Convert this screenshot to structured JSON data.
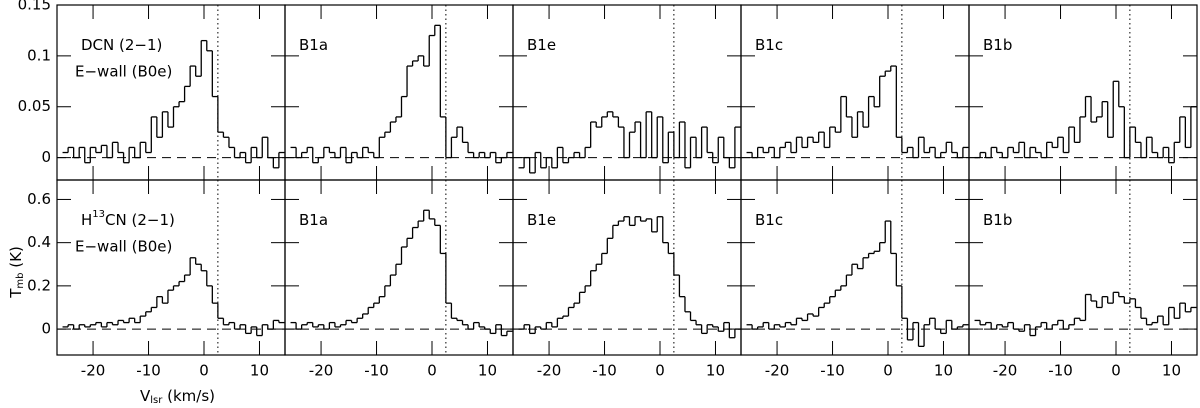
{
  "x_label": [
    {
      "text": "V"
    },
    {
      "text": "lsr",
      "sub": true
    },
    {
      "text": " (km/s)"
    }
  ],
  "y_label": [
    {
      "text": "T"
    },
    {
      "text": "mb",
      "sub": true
    },
    {
      "text": " (K)"
    }
  ],
  "chart_data": [
    {
      "type": "line",
      "title": [
        {
          "text": "DCN (2−1)"
        }
      ],
      "subtitle": "E−wall (B0e)",
      "x": [
        -25,
        -24,
        -23,
        -22,
        -21,
        -20,
        -19,
        -18,
        -17,
        -16,
        -15,
        -14,
        -13,
        -12,
        -11,
        -10,
        -9,
        -8,
        -7,
        -6,
        -5,
        -4,
        -3,
        -2,
        -1,
        0,
        1,
        2,
        3,
        4,
        5,
        6,
        7,
        8,
        9,
        10,
        11,
        12,
        13,
        14
      ],
      "values": [
        0.005,
        0.01,
        0.0,
        0.01,
        -0.005,
        0.01,
        0.005,
        0.012,
        0.0,
        0.015,
        0.005,
        -0.005,
        0.01,
        0.0,
        0.015,
        0.005,
        0.04,
        0.02,
        0.045,
        0.03,
        0.05,
        0.055,
        0.07,
        0.09,
        0.08,
        0.115,
        0.105,
        0.06,
        0.025,
        0.02,
        0.01,
        0.0,
        0.005,
        -0.005,
        0.01,
        0.0,
        0.02,
        0.0,
        -0.01,
        0.005
      ],
      "xlim": [
        -26.5,
        14.6
      ],
      "ylim": [
        -0.022,
        0.15
      ],
      "xticks": [
        -20,
        -10,
        0,
        10
      ],
      "yticks": [
        0,
        0.05,
        0.1,
        0.15
      ],
      "vline": 2.5
    },
    {
      "type": "line",
      "title": [
        {
          "text": "B1a"
        }
      ],
      "x": [
        -25,
        -24,
        -23,
        -22,
        -21,
        -20,
        -19,
        -18,
        -17,
        -16,
        -15,
        -14,
        -13,
        -12,
        -11,
        -10,
        -9,
        -8,
        -7,
        -6,
        -5,
        -4,
        -3,
        -2,
        -1,
        0,
        1,
        2,
        3,
        4,
        5,
        6,
        7,
        8,
        9,
        10,
        11,
        12,
        13,
        14
      ],
      "values": [
        0.01,
        0.0,
        0.005,
        0.01,
        -0.005,
        0.0,
        0.01,
        0.005,
        0.0,
        0.01,
        -0.005,
        0.005,
        0.0,
        0.01,
        0.005,
        0.0,
        0.02,
        0.025,
        0.035,
        0.04,
        0.06,
        0.09,
        0.095,
        0.1,
        0.09,
        0.12,
        0.13,
        0.04,
        0.0,
        0.02,
        0.03,
        0.015,
        0.005,
        0.0,
        0.005,
        0.0,
        0.005,
        -0.005,
        0.0,
        0.005
      ],
      "xlim": [
        -26.5,
        14.6
      ],
      "ylim": [
        -0.022,
        0.15
      ],
      "xticks": [
        -20,
        -10,
        0,
        10
      ],
      "yticks": [
        0,
        0.05,
        0.1,
        0.15
      ],
      "vline": 2.5
    },
    {
      "type": "line",
      "title": [
        {
          "text": "B1e"
        }
      ],
      "x": [
        -25,
        -24,
        -23,
        -22,
        -21,
        -20,
        -19,
        -18,
        -17,
        -16,
        -15,
        -14,
        -13,
        -12,
        -11,
        -10,
        -9,
        -8,
        -7,
        -6,
        -5,
        -4,
        -3,
        -2,
        -1,
        0,
        1,
        2,
        3,
        4,
        5,
        6,
        7,
        8,
        9,
        10,
        11,
        12,
        13,
        14
      ],
      "values": [
        -0.01,
        0.0,
        -0.015,
        0.005,
        -0.01,
        0.0,
        -0.01,
        0.01,
        -0.005,
        0.0,
        0.005,
        0.0,
        0.01,
        0.035,
        0.03,
        0.04,
        0.045,
        0.04,
        0.03,
        0.0,
        0.025,
        0.035,
        0.0,
        0.045,
        0.0,
        0.04,
        -0.005,
        0.025,
        0.0,
        0.035,
        -0.01,
        0.02,
        0.0,
        0.03,
        0.005,
        -0.005,
        0.02,
        0.0,
        -0.01,
        0.03
      ],
      "xlim": [
        -26.5,
        14.6
      ],
      "ylim": [
        -0.022,
        0.15
      ],
      "xticks": [
        -20,
        -10,
        0,
        10
      ],
      "yticks": [
        0,
        0.05,
        0.1,
        0.15
      ],
      "vline": 2.5
    },
    {
      "type": "line",
      "title": [
        {
          "text": "B1c"
        }
      ],
      "x": [
        -25,
        -24,
        -23,
        -22,
        -21,
        -20,
        -19,
        -18,
        -17,
        -16,
        -15,
        -14,
        -13,
        -12,
        -11,
        -10,
        -9,
        -8,
        -7,
        -6,
        -5,
        -4,
        -3,
        -2,
        -1,
        0,
        1,
        2,
        3,
        4,
        5,
        6,
        7,
        8,
        9,
        10,
        11,
        12,
        13,
        14
      ],
      "values": [
        0.005,
        0.0,
        0.01,
        0.005,
        0.01,
        0.0,
        0.01,
        0.015,
        0.005,
        0.02,
        0.01,
        0.02,
        0.015,
        0.025,
        0.01,
        0.03,
        0.025,
        0.06,
        0.04,
        0.02,
        0.045,
        0.03,
        0.06,
        0.05,
        0.08,
        0.085,
        0.09,
        0.02,
        0.005,
        0.01,
        0.0,
        0.02,
        0.005,
        0.01,
        0.0,
        0.005,
        0.015,
        0.005,
        0.0,
        0.01
      ],
      "xlim": [
        -26.5,
        14.6
      ],
      "ylim": [
        -0.022,
        0.15
      ],
      "xticks": [
        -20,
        -10,
        0,
        10
      ],
      "yticks": [
        0,
        0.05,
        0.1,
        0.15
      ],
      "vline": 2.5
    },
    {
      "type": "line",
      "title": [
        {
          "text": "B1b"
        }
      ],
      "x": [
        -25,
        -24,
        -23,
        -22,
        -21,
        -20,
        -19,
        -18,
        -17,
        -16,
        -15,
        -14,
        -13,
        -12,
        -11,
        -10,
        -9,
        -8,
        -7,
        -6,
        -5,
        -4,
        -3,
        -2,
        -1,
        0,
        1,
        2,
        3,
        4,
        5,
        6,
        7,
        8,
        9,
        10,
        11,
        12,
        13,
        14
      ],
      "values": [
        0.0,
        0.005,
        0.0,
        0.01,
        0.005,
        0.0,
        0.01,
        0.005,
        0.015,
        0.0,
        0.01,
        0.005,
        0.0,
        0.015,
        0.01,
        0.02,
        0.005,
        0.03,
        0.015,
        0.04,
        0.06,
        0.035,
        0.04,
        0.055,
        0.02,
        0.075,
        0.05,
        0.0,
        0.03,
        0.015,
        0.0,
        0.02,
        0.005,
        0.0,
        0.01,
        -0.005,
        0.015,
        0.04,
        0.01,
        0.05
      ],
      "xlim": [
        -26.5,
        14.6
      ],
      "ylim": [
        -0.022,
        0.15
      ],
      "xticks": [
        -20,
        -10,
        0,
        10
      ],
      "yticks": [
        0,
        0.05,
        0.1,
        0.15
      ],
      "vline": 2.5
    },
    {
      "type": "line",
      "title": [
        {
          "text": "H"
        },
        {
          "text": "13",
          "sup": true
        },
        {
          "text": "CN (2−1)"
        }
      ],
      "subtitle": "E−wall (B0e)",
      "x": [
        -25,
        -24,
        -23,
        -22,
        -21,
        -20,
        -19,
        -18,
        -17,
        -16,
        -15,
        -14,
        -13,
        -12,
        -11,
        -10,
        -9,
        -8,
        -7,
        -6,
        -5,
        -4,
        -3,
        -2,
        -1,
        0,
        1,
        2,
        3,
        4,
        5,
        6,
        7,
        8,
        9,
        10,
        11,
        12,
        13,
        14
      ],
      "values": [
        0.01,
        0.02,
        0.0,
        0.02,
        0.01,
        0.02,
        0.03,
        0.01,
        0.03,
        0.02,
        0.04,
        0.03,
        0.05,
        0.03,
        0.06,
        0.08,
        0.1,
        0.15,
        0.12,
        0.18,
        0.2,
        0.22,
        0.25,
        0.33,
        0.3,
        0.27,
        0.2,
        0.12,
        0.05,
        0.02,
        0.03,
        0.0,
        0.02,
        -0.02,
        0.01,
        -0.03,
        0.02,
        0.0,
        0.04,
        0.03
      ],
      "xlim": [
        -26.5,
        14.6
      ],
      "ylim": [
        -0.12,
        0.69
      ],
      "xticks": [
        -20,
        -10,
        0,
        10
      ],
      "yticks": [
        0,
        0.2,
        0.4,
        0.6
      ],
      "vline": 2.5
    },
    {
      "type": "line",
      "title": [
        {
          "text": "B1a"
        }
      ],
      "x": [
        -25,
        -24,
        -23,
        -22,
        -21,
        -20,
        -19,
        -18,
        -17,
        -16,
        -15,
        -14,
        -13,
        -12,
        -11,
        -10,
        -9,
        -8,
        -7,
        -6,
        -5,
        -4,
        -3,
        -2,
        -1,
        0,
        1,
        2,
        3,
        4,
        5,
        6,
        7,
        8,
        9,
        10,
        11,
        12,
        13,
        14
      ],
      "values": [
        0.03,
        0.0,
        0.02,
        0.03,
        0.01,
        0.02,
        0.0,
        0.03,
        0.01,
        0.02,
        0.04,
        0.03,
        0.05,
        0.07,
        0.1,
        0.12,
        0.15,
        0.2,
        0.25,
        0.3,
        0.38,
        0.42,
        0.47,
        0.5,
        0.55,
        0.51,
        0.48,
        0.35,
        0.12,
        0.05,
        0.04,
        0.02,
        0.0,
        0.03,
        0.01,
        0.0,
        -0.02,
        0.02,
        -0.03,
        -0.01
      ],
      "xlim": [
        -26.5,
        14.6
      ],
      "ylim": [
        -0.12,
        0.69
      ],
      "xticks": [
        -20,
        -10,
        0,
        10
      ],
      "yticks": [
        0,
        0.2,
        0.4,
        0.6
      ],
      "vline": 2.5
    },
    {
      "type": "line",
      "title": [
        {
          "text": "B1e"
        }
      ],
      "x": [
        -25,
        -24,
        -23,
        -22,
        -21,
        -20,
        -19,
        -18,
        -17,
        -16,
        -15,
        -14,
        -13,
        -12,
        -11,
        -10,
        -9,
        -8,
        -7,
        -6,
        -5,
        -4,
        -3,
        -2,
        -1,
        0,
        1,
        2,
        3,
        4,
        5,
        6,
        7,
        8,
        9,
        10,
        11,
        12,
        13,
        14
      ],
      "values": [
        0.0,
        0.02,
        -0.02,
        0.01,
        0.0,
        0.03,
        0.01,
        0.05,
        0.06,
        0.1,
        0.12,
        0.17,
        0.2,
        0.27,
        0.3,
        0.35,
        0.42,
        0.48,
        0.5,
        0.52,
        0.48,
        0.52,
        0.5,
        0.51,
        0.45,
        0.52,
        0.4,
        0.35,
        0.25,
        0.15,
        0.08,
        0.04,
        0.02,
        -0.02,
        0.02,
        0.01,
        -0.01,
        0.03,
        -0.04,
        0.0
      ],
      "xlim": [
        -26.5,
        14.6
      ],
      "ylim": [
        -0.12,
        0.69
      ],
      "xticks": [
        -20,
        -10,
        0,
        10
      ],
      "yticks": [
        0,
        0.2,
        0.4,
        0.6
      ],
      "vline": 2.5
    },
    {
      "type": "line",
      "title": [
        {
          "text": "B1c"
        }
      ],
      "x": [
        -25,
        -24,
        -23,
        -22,
        -21,
        -20,
        -19,
        -18,
        -17,
        -16,
        -15,
        -14,
        -13,
        -12,
        -11,
        -10,
        -9,
        -8,
        -7,
        -6,
        -5,
        -4,
        -3,
        -2,
        -1,
        0,
        1,
        2,
        3,
        4,
        5,
        6,
        7,
        8,
        9,
        10,
        11,
        12,
        13,
        14
      ],
      "values": [
        0.02,
        0.0,
        0.01,
        0.03,
        0.0,
        0.02,
        0.01,
        0.03,
        0.02,
        0.05,
        0.04,
        0.07,
        0.06,
        0.1,
        0.12,
        0.15,
        0.18,
        0.2,
        0.25,
        0.3,
        0.28,
        0.33,
        0.35,
        0.36,
        0.4,
        0.5,
        0.35,
        0.2,
        0.05,
        -0.05,
        0.03,
        -0.08,
        0.02,
        0.05,
        0.0,
        -0.02,
        0.04,
        0.0,
        0.01,
        0.02
      ],
      "xlim": [
        -26.5,
        14.6
      ],
      "ylim": [
        -0.12,
        0.69
      ],
      "xticks": [
        -20,
        -10,
        0,
        10
      ],
      "yticks": [
        0,
        0.2,
        0.4,
        0.6
      ],
      "vline": 2.5
    },
    {
      "type": "line",
      "title": [
        {
          "text": "B1b"
        }
      ],
      "x": [
        -25,
        -24,
        -23,
        -22,
        -21,
        -20,
        -19,
        -18,
        -17,
        -16,
        -15,
        -14,
        -13,
        -12,
        -11,
        -10,
        -9,
        -8,
        -7,
        -6,
        -5,
        -4,
        -3,
        -2,
        -1,
        0,
        1,
        2,
        3,
        4,
        5,
        6,
        7,
        8,
        9,
        10,
        11,
        12,
        13,
        14
      ],
      "values": [
        0.04,
        0.02,
        0.03,
        0.0,
        0.02,
        0.01,
        0.03,
        0.0,
        -0.01,
        0.02,
        -0.03,
        0.01,
        0.03,
        0.0,
        0.02,
        0.04,
        0.0,
        0.02,
        0.05,
        0.04,
        0.16,
        0.13,
        0.1,
        0.15,
        0.12,
        0.17,
        0.15,
        0.12,
        0.14,
        0.1,
        0.05,
        0.02,
        0.03,
        0.06,
        0.02,
        0.1,
        0.05,
        0.12,
        0.08,
        0.1
      ],
      "xlim": [
        -26.5,
        14.6
      ],
      "ylim": [
        -0.12,
        0.69
      ],
      "xticks": [
        -20,
        -10,
        0,
        10
      ],
      "yticks": [
        0,
        0.2,
        0.4,
        0.6
      ],
      "vline": 2.5
    }
  ]
}
